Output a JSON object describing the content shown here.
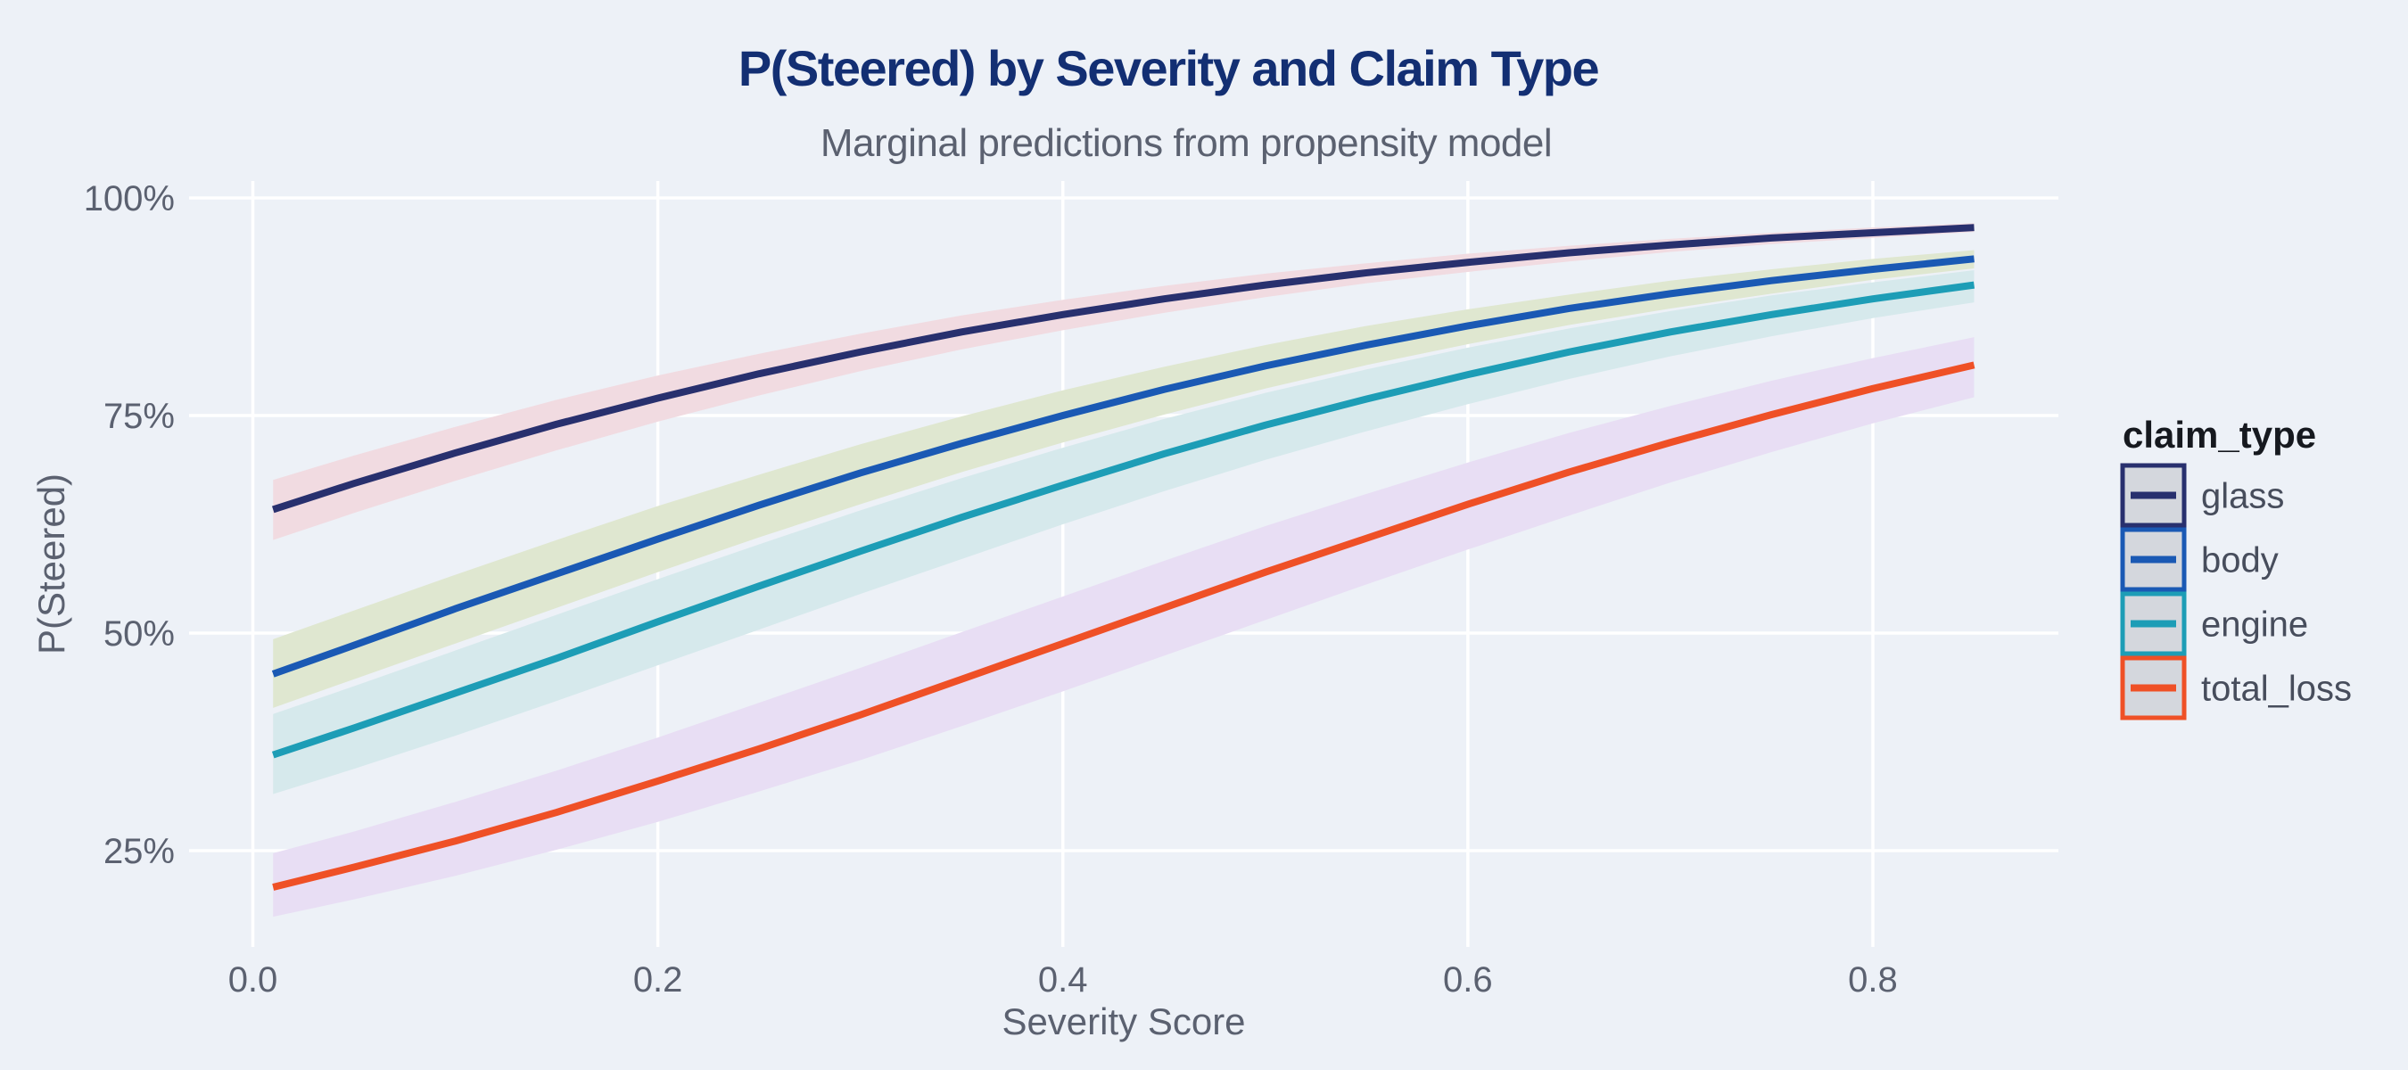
{
  "colors": {
    "background": "#edf1f7",
    "grid": "#ffffff",
    "title": "#132f73",
    "subtitle": "#5b6170",
    "axis_text": "#5b6170",
    "legend_title_color": "#16191f",
    "legend_label_color": "#474d5c",
    "legend_key_bg": "#d4d7dd"
  },
  "legend": {
    "title": "claim_type",
    "entries": [
      "glass",
      "body",
      "engine",
      "total_loss"
    ]
  },
  "axes": {
    "x": {
      "title": "Severity Score",
      "tick_labels": [
        "0.0",
        "0.2",
        "0.4",
        "0.6",
        "0.8"
      ]
    },
    "y": {
      "title": "P(Steered)",
      "tick_labels": [
        "25%",
        "50%",
        "75%",
        "100%"
      ]
    }
  },
  "chart_data": {
    "type": "line",
    "title": "P(Steered) by Severity and Claim Type",
    "subtitle": "Marginal predictions from propensity model",
    "xlabel": "Severity Score",
    "ylabel": "P(Steered)",
    "legend_title": "claim_type",
    "legend_position": "right",
    "grid": true,
    "xlim": [
      -0.03,
      0.9
    ],
    "ylim_pct": [
      14,
      102
    ],
    "x_ticks": {
      "values": [
        0.0,
        0.2,
        0.4,
        0.6,
        0.8
      ],
      "labels": [
        "0.0",
        "0.2",
        "0.4",
        "0.6",
        "0.8"
      ]
    },
    "y_ticks": {
      "values": [
        25,
        50,
        75,
        100
      ],
      "labels": [
        "25%",
        "50%",
        "75%",
        "100%"
      ]
    },
    "x": [
      0.01,
      0.05,
      0.1,
      0.15,
      0.2,
      0.25,
      0.3,
      0.35,
      0.4,
      0.45,
      0.5,
      0.55,
      0.6,
      0.65,
      0.7,
      0.75,
      0.8,
      0.85
    ],
    "series": [
      {
        "name": "glass",
        "line_color": "#28306e",
        "ribbon_color": "#f1dbe1",
        "values": [
          0.642,
          0.672,
          0.707,
          0.74,
          0.77,
          0.798,
          0.823,
          0.846,
          0.866,
          0.884,
          0.9,
          0.914,
          0.926,
          0.937,
          0.946,
          0.954,
          0.96,
          0.966
        ],
        "ci_low": [
          0.607,
          0.638,
          0.675,
          0.71,
          0.743,
          0.773,
          0.801,
          0.826,
          0.848,
          0.868,
          0.886,
          0.902,
          0.915,
          0.927,
          0.938,
          0.947,
          0.954,
          0.961
        ],
        "ci_high": [
          0.676,
          0.704,
          0.737,
          0.768,
          0.796,
          0.821,
          0.844,
          0.865,
          0.883,
          0.899,
          0.913,
          0.925,
          0.936,
          0.945,
          0.953,
          0.96,
          0.966,
          0.971
        ]
      },
      {
        "name": "body",
        "line_color": "#1a59b4",
        "ribbon_color": "#dfe7d0",
        "values": [
          0.453,
          0.486,
          0.528,
          0.568,
          0.608,
          0.647,
          0.684,
          0.718,
          0.75,
          0.78,
          0.807,
          0.831,
          0.853,
          0.873,
          0.89,
          0.905,
          0.918,
          0.93
        ],
        "ci_low": [
          0.414,
          0.447,
          0.488,
          0.529,
          0.57,
          0.61,
          0.648,
          0.685,
          0.719,
          0.751,
          0.781,
          0.808,
          0.832,
          0.854,
          0.873,
          0.89,
          0.906,
          0.919
        ],
        "ci_high": [
          0.493,
          0.526,
          0.567,
          0.607,
          0.646,
          0.682,
          0.717,
          0.749,
          0.779,
          0.806,
          0.831,
          0.853,
          0.872,
          0.889,
          0.905,
          0.918,
          0.93,
          0.94
        ]
      },
      {
        "name": "engine",
        "line_color": "#1d9db6",
        "ribbon_color": "#d6e9ec",
        "values": [
          0.36,
          0.391,
          0.431,
          0.471,
          0.513,
          0.554,
          0.594,
          0.633,
          0.67,
          0.706,
          0.739,
          0.769,
          0.797,
          0.823,
          0.846,
          0.866,
          0.884,
          0.9
        ],
        "ci_low": [
          0.315,
          0.344,
          0.382,
          0.422,
          0.463,
          0.504,
          0.545,
          0.585,
          0.625,
          0.663,
          0.699,
          0.732,
          0.763,
          0.792,
          0.818,
          0.841,
          0.862,
          0.88
        ],
        "ci_high": [
          0.407,
          0.439,
          0.48,
          0.521,
          0.562,
          0.602,
          0.641,
          0.678,
          0.713,
          0.746,
          0.776,
          0.803,
          0.828,
          0.85,
          0.87,
          0.888,
          0.903,
          0.917
        ]
      },
      {
        "name": "total_loss",
        "line_color": "#ef5026",
        "ribbon_color": "#e8def4",
        "values": [
          0.208,
          0.231,
          0.261,
          0.294,
          0.33,
          0.367,
          0.406,
          0.447,
          0.488,
          0.529,
          0.57,
          0.609,
          0.648,
          0.685,
          0.719,
          0.751,
          0.781,
          0.808
        ],
        "ci_low": [
          0.174,
          0.194,
          0.221,
          0.251,
          0.283,
          0.318,
          0.354,
          0.393,
          0.433,
          0.474,
          0.515,
          0.556,
          0.596,
          0.635,
          0.673,
          0.708,
          0.741,
          0.771
        ],
        "ci_high": [
          0.247,
          0.272,
          0.306,
          0.342,
          0.38,
          0.42,
          0.46,
          0.501,
          0.542,
          0.583,
          0.623,
          0.66,
          0.696,
          0.73,
          0.761,
          0.79,
          0.816,
          0.84
        ]
      }
    ]
  }
}
